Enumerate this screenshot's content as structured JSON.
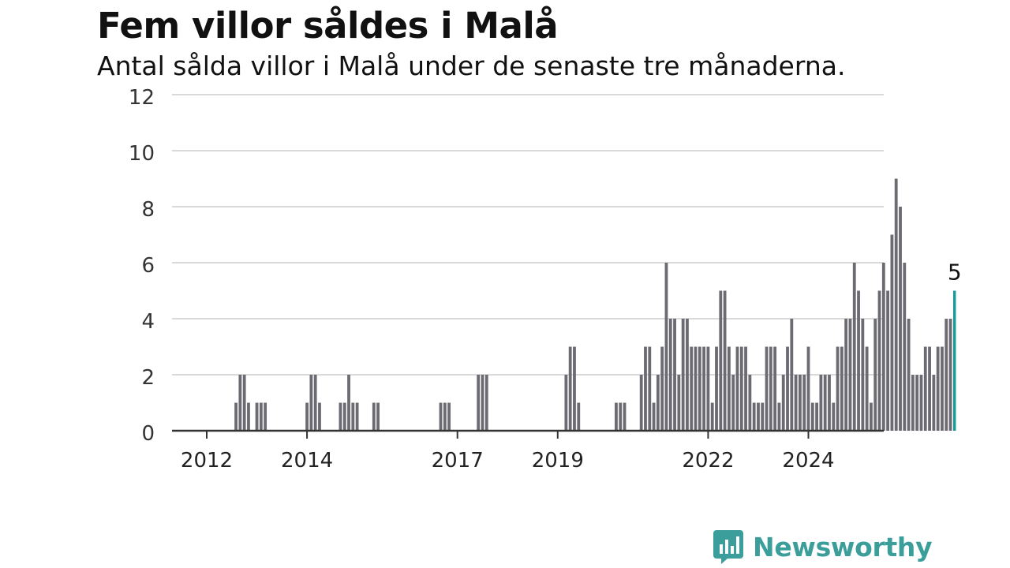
{
  "title": "Fem villor såldes i Malå",
  "subtitle": "Antal sålda villor i Malå under de senaste tre månaderna.",
  "brand": {
    "name": "Newsworthy",
    "icon": "newsworthy-logo-icon",
    "color": "#3b9e9a"
  },
  "chart_data": {
    "type": "bar",
    "title": "Fem villor såldes i Malå",
    "subtitle": "Antal sålda villor i Malå under de senaste tre månaderna.",
    "xlabel": "",
    "ylabel": "",
    "ylim": [
      0,
      12
    ],
    "yticks": [
      0,
      2,
      4,
      6,
      8,
      10,
      12
    ],
    "xticks": [
      "2012",
      "2014",
      "2017",
      "2019",
      "2022",
      "2024"
    ],
    "grid": true,
    "colors": {
      "bar": "#6c6b73",
      "highlight": "#1a9b95",
      "grid": "#d9d9d9",
      "axis": "#333333"
    },
    "annotation": {
      "text": "5",
      "target": "last bar"
    },
    "start_month": "2011-05",
    "values": [
      0,
      0,
      0,
      0,
      0,
      0,
      0,
      0,
      0,
      0,
      0,
      0,
      0,
      0,
      0,
      1,
      2,
      2,
      1,
      0,
      1,
      1,
      1,
      0,
      0,
      0,
      0,
      0,
      0,
      0,
      0,
      0,
      1,
      2,
      2,
      1,
      0,
      0,
      0,
      0,
      1,
      1,
      2,
      1,
      1,
      0,
      0,
      0,
      1,
      1,
      0,
      0,
      0,
      0,
      0,
      0,
      0,
      0,
      0,
      0,
      0,
      0,
      0,
      0,
      1,
      1,
      1,
      0,
      0,
      0,
      0,
      0,
      0,
      2,
      2,
      2,
      0,
      0,
      0,
      0,
      0,
      0,
      0,
      0,
      0,
      0,
      0,
      0,
      0,
      0,
      0,
      0,
      0,
      0,
      2,
      3,
      3,
      1,
      0,
      0,
      0,
      0,
      0,
      0,
      0,
      0,
      1,
      1,
      1,
      0,
      0,
      0,
      2,
      3,
      3,
      1,
      2,
      3,
      6,
      4,
      4,
      2,
      4,
      4,
      3,
      3,
      3,
      3,
      3,
      1,
      3,
      5,
      5,
      3,
      2,
      3,
      3,
      3,
      2,
      1,
      1,
      1,
      3,
      3,
      3,
      1,
      2,
      3,
      4,
      2,
      2,
      2,
      3,
      1,
      1,
      2,
      2,
      2,
      1,
      3,
      3,
      4,
      4,
      6,
      5,
      4,
      3,
      1,
      4,
      5,
      6,
      5,
      7,
      9,
      8,
      6,
      4,
      2,
      2,
      2,
      3,
      3,
      2,
      3,
      3,
      4,
      4,
      5
    ]
  }
}
